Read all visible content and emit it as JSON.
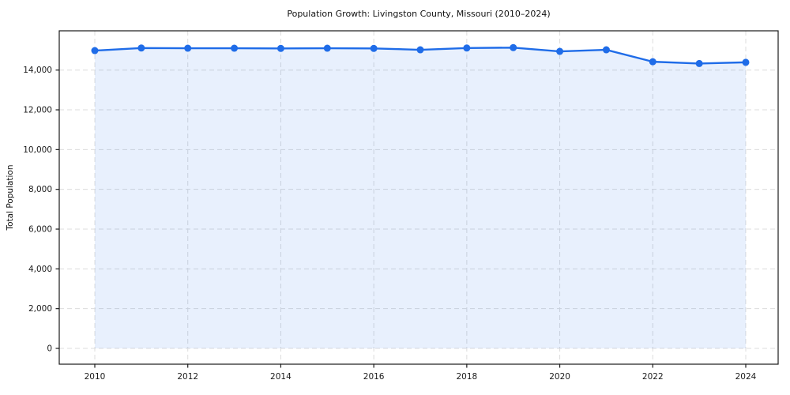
{
  "chart_data": {
    "type": "area",
    "title": "Population Growth: Livingston County, Missouri (2010–2024)",
    "xlabel": "",
    "ylabel": "Total Population",
    "x": [
      2010,
      2011,
      2012,
      2013,
      2014,
      2015,
      2016,
      2017,
      2018,
      2019,
      2020,
      2021,
      2022,
      2023,
      2024
    ],
    "series": [
      {
        "name": "Total Population",
        "values": [
          14980,
          15110,
          15100,
          15100,
          15090,
          15100,
          15090,
          15020,
          15110,
          15130,
          14940,
          15020,
          14420,
          14330,
          14390
        ]
      }
    ],
    "x_ticks": [
      2010,
      2012,
      2014,
      2016,
      2018,
      2020,
      2022,
      2024
    ],
    "x_tick_labels": [
      "2010",
      "2012",
      "2014",
      "2016",
      "2018",
      "2020",
      "2022",
      "2024"
    ],
    "y_ticks": [
      0,
      2000,
      4000,
      6000,
      8000,
      10000,
      12000,
      14000
    ],
    "y_tick_labels": [
      "0",
      "2,000",
      "4,000",
      "6,000",
      "8,000",
      "10,000",
      "12,000",
      "14,000"
    ],
    "ylim": [
      -800,
      15960
    ],
    "xlim": [
      2009.24,
      2024.7
    ],
    "grid": true,
    "grid_style": "dashed",
    "legend": "none",
    "marker": "circle",
    "fill_baseline": 0,
    "colors": {
      "line": "#1f6ce8",
      "fill": "#1f6ce8",
      "fill_opacity": "0.10",
      "grid": "#dcdcdc",
      "spine": "#1a1a1a",
      "tick_text": "#1a1a1a",
      "title_text": "#111111",
      "background": "#ffffff"
    }
  }
}
